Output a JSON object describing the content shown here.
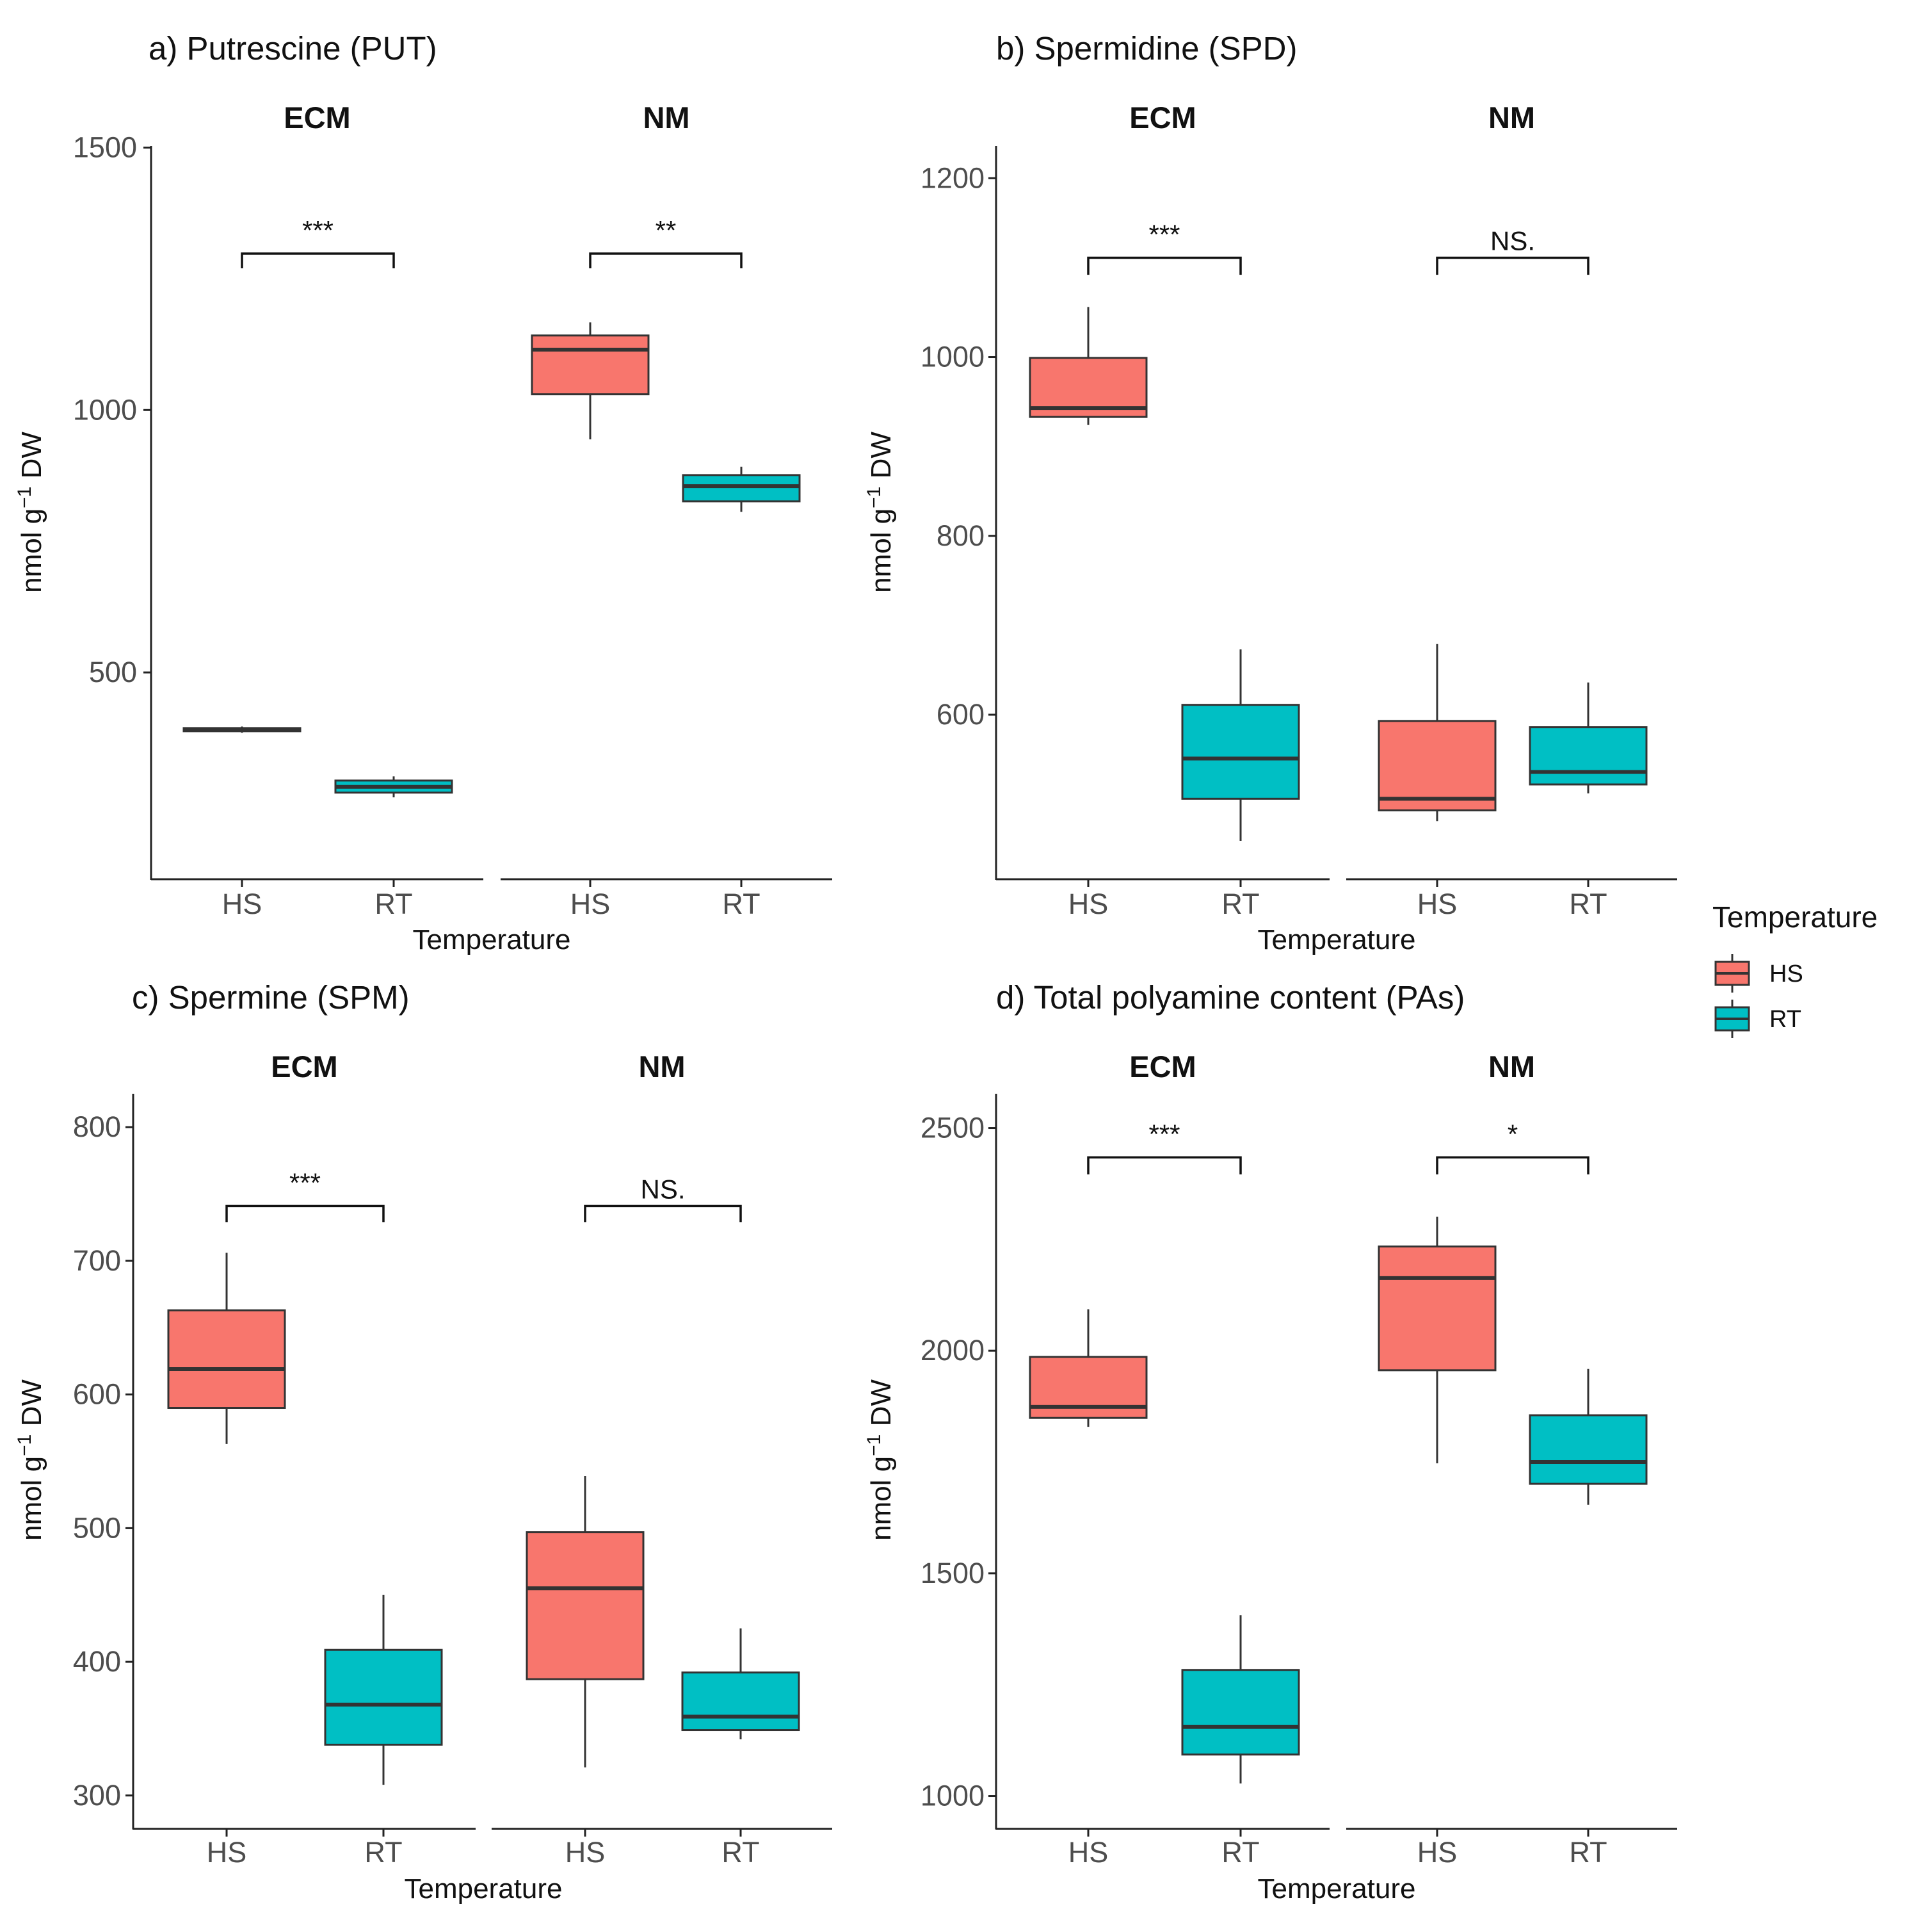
{
  "colors": {
    "HS": "#F8766D",
    "RT": "#00BFC4",
    "line": "#333333",
    "axis": "#222222"
  },
  "legend": {
    "title": "Temperature",
    "items": [
      "HS",
      "RT"
    ]
  },
  "chart_data": [
    {
      "type": "boxplot",
      "title": "a) Putrescine (PUT)",
      "ylabel_main": "nmol g",
      "ylabel_sup": "−1",
      "ylabel_tail": " DW",
      "xlabel": "Temperature",
      "ylim": [
        106,
        1503
      ],
      "yticks": [
        "500",
        "1000",
        "1500"
      ],
      "facets": [
        "ECM",
        "NM"
      ],
      "categories": [
        "HS",
        "RT"
      ],
      "groups": [
        {
          "facet": 0,
          "cat": 0,
          "temp": "HS",
          "min": 385,
          "q1": 388,
          "median": 391,
          "q3": 394,
          "max": 397
        },
        {
          "facet": 0,
          "cat": 1,
          "temp": "RT",
          "min": 262,
          "q1": 271,
          "median": 282,
          "q3": 294,
          "max": 302
        },
        {
          "facet": 1,
          "cat": 0,
          "temp": "HS",
          "min": 944,
          "q1": 1030,
          "median": 1115,
          "q3": 1142,
          "max": 1167
        },
        {
          "facet": 1,
          "cat": 1,
          "temp": "RT",
          "min": 806,
          "q1": 826,
          "median": 855,
          "q3": 876,
          "max": 892
        }
      ],
      "sig": [
        {
          "facet": 0,
          "label": "***",
          "y": 1298,
          "drop": 28
        },
        {
          "facet": 1,
          "label": "**",
          "y": 1298,
          "drop": 28
        }
      ]
    },
    {
      "type": "boxplot",
      "title": "b) Spermidine (SPD)",
      "ylabel_main": "nmol g",
      "ylabel_sup": "−1",
      "ylabel_tail": " DW",
      "xlabel": "Temperature",
      "ylim": [
        416,
        1236
      ],
      "yticks": [
        "600",
        "800",
        "1000",
        "1200"
      ],
      "facets": [
        "ECM",
        "NM"
      ],
      "categories": [
        "HS",
        "RT"
      ],
      "groups": [
        {
          "facet": 0,
          "cat": 0,
          "temp": "HS",
          "min": 924,
          "q1": 933,
          "median": 943,
          "q3": 999,
          "max": 1056
        },
        {
          "facet": 0,
          "cat": 1,
          "temp": "RT",
          "min": 459,
          "q1": 506,
          "median": 551,
          "q3": 611,
          "max": 673
        },
        {
          "facet": 1,
          "cat": 0,
          "temp": "HS",
          "min": 481,
          "q1": 493,
          "median": 506,
          "q3": 593,
          "max": 679
        },
        {
          "facet": 1,
          "cat": 1,
          "temp": "RT",
          "min": 512,
          "q1": 522,
          "median": 536,
          "q3": 586,
          "max": 636
        }
      ],
      "sig": [
        {
          "facet": 0,
          "label": "***",
          "y": 1111,
          "drop": 19
        },
        {
          "facet": 1,
          "label": "NS.",
          "y": 1111,
          "drop": 19
        }
      ]
    },
    {
      "type": "boxplot",
      "title": "c) Spermine (SPM)",
      "ylabel_main": "nmol g",
      "ylabel_sup": "−1",
      "ylabel_tail": " DW",
      "xlabel": "Temperature",
      "ylim": [
        275,
        825
      ],
      "yticks": [
        "300",
        "400",
        "500",
        "600",
        "700",
        "800"
      ],
      "facets": [
        "ECM",
        "NM"
      ],
      "categories": [
        "HS",
        "RT"
      ],
      "groups": [
        {
          "facet": 0,
          "cat": 0,
          "temp": "HS",
          "min": 563,
          "q1": 590,
          "median": 619,
          "q3": 663,
          "max": 706
        },
        {
          "facet": 0,
          "cat": 1,
          "temp": "RT",
          "min": 308,
          "q1": 338,
          "median": 368,
          "q3": 409,
          "max": 450
        },
        {
          "facet": 1,
          "cat": 0,
          "temp": "HS",
          "min": 321,
          "q1": 387,
          "median": 455,
          "q3": 497,
          "max": 539
        },
        {
          "facet": 1,
          "cat": 1,
          "temp": "RT",
          "min": 342,
          "q1": 349,
          "median": 359,
          "q3": 392,
          "max": 425
        }
      ],
      "sig": [
        {
          "facet": 0,
          "label": "***",
          "y": 741,
          "drop": 12
        },
        {
          "facet": 1,
          "label": "NS.",
          "y": 741,
          "drop": 12
        }
      ]
    },
    {
      "type": "boxplot",
      "title": "d) Total polyamine content (PAs)",
      "ylabel_main": "nmol g",
      "ylabel_sup": "−1",
      "ylabel_tail": " DW",
      "xlabel": "Temperature",
      "ylim": [
        926,
        2577
      ],
      "yticks": [
        "1000",
        "1500",
        "2000",
        "2500"
      ],
      "facets": [
        "ECM",
        "NM"
      ],
      "categories": [
        "HS",
        "RT"
      ],
      "groups": [
        {
          "facet": 0,
          "cat": 0,
          "temp": "HS",
          "min": 1829,
          "q1": 1849,
          "median": 1874,
          "q3": 1986,
          "max": 2093
        },
        {
          "facet": 0,
          "cat": 1,
          "temp": "RT",
          "min": 1028,
          "q1": 1093,
          "median": 1155,
          "q3": 1283,
          "max": 1406
        },
        {
          "facet": 1,
          "cat": 0,
          "temp": "HS",
          "min": 1747,
          "q1": 1956,
          "median": 2163,
          "q3": 2234,
          "max": 2301
        },
        {
          "facet": 1,
          "cat": 1,
          "temp": "RT",
          "min": 1654,
          "q1": 1701,
          "median": 1750,
          "q3": 1855,
          "max": 1959
        }
      ],
      "sig": [
        {
          "facet": 0,
          "label": "***",
          "y": 2434,
          "drop": 38
        },
        {
          "facet": 1,
          "label": "*",
          "y": 2434,
          "drop": 38
        }
      ]
    }
  ]
}
